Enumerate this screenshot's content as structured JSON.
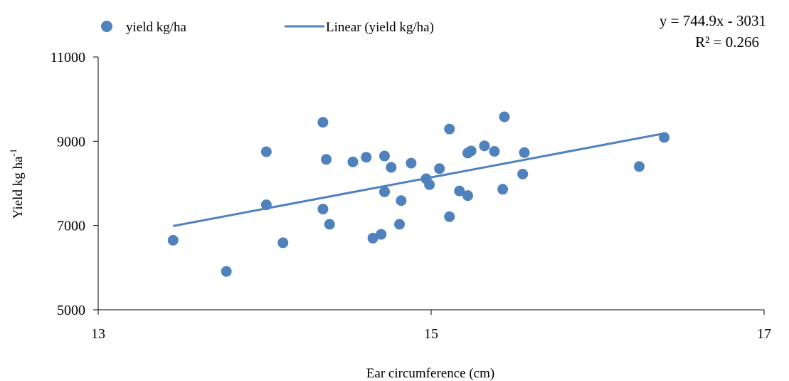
{
  "chart_data": {
    "type": "scatter",
    "title": "",
    "xlabel": "Ear circumference (cm)",
    "ylabel_base": "Yield kg ha",
    "ylabel_sup": "-1",
    "xlim": [
      13,
      17
    ],
    "ylim": [
      5000,
      11000
    ],
    "x_ticks": [
      "13",
      "15",
      "17"
    ],
    "y_ticks": [
      "5000",
      "7000",
      "9000",
      "11000"
    ],
    "grid": false,
    "legend_position": "top",
    "colors": {
      "series": "#4F81BD"
    },
    "legend": {
      "series_label": "yield kg/ha",
      "trend_label": "Linear (yield kg/ha)"
    },
    "equation": {
      "line1": "y = 744.9x - 3031",
      "line2": "R² = 0.266"
    },
    "series": [
      {
        "name": "yield kg/ha",
        "points": [
          [
            13.45,
            6650
          ],
          [
            13.77,
            5910
          ],
          [
            14.01,
            8750
          ],
          [
            14.01,
            7490
          ],
          [
            14.11,
            6590
          ],
          [
            14.35,
            9450
          ],
          [
            14.35,
            7390
          ],
          [
            14.37,
            8570
          ],
          [
            14.39,
            7030
          ],
          [
            14.53,
            8510
          ],
          [
            14.61,
            8620
          ],
          [
            14.65,
            6700
          ],
          [
            14.7,
            6790
          ],
          [
            14.72,
            8650
          ],
          [
            14.72,
            7800
          ],
          [
            14.76,
            8380
          ],
          [
            14.81,
            7030
          ],
          [
            14.82,
            7590
          ],
          [
            14.88,
            8480
          ],
          [
            14.97,
            8110
          ],
          [
            14.99,
            7970
          ],
          [
            15.05,
            8350
          ],
          [
            15.11,
            9290
          ],
          [
            15.11,
            7210
          ],
          [
            15.17,
            7820
          ],
          [
            15.22,
            8720
          ],
          [
            15.22,
            7710
          ],
          [
            15.24,
            8770
          ],
          [
            15.32,
            8890
          ],
          [
            15.38,
            8760
          ],
          [
            15.44,
            9580
          ],
          [
            15.43,
            7860
          ],
          [
            15.56,
            8730
          ],
          [
            15.55,
            8220
          ],
          [
            16.25,
            8400
          ],
          [
            16.4,
            9090
          ]
        ]
      }
    ],
    "trendline": {
      "name": "Linear (yield kg/ha)",
      "slope": 744.9,
      "intercept": -3031,
      "x_range": [
        13.45,
        16.4
      ]
    }
  }
}
